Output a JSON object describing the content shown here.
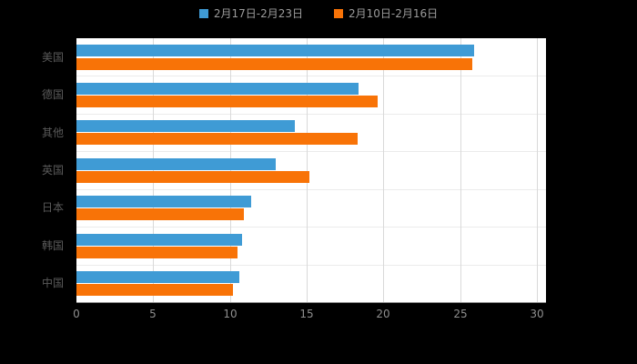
{
  "chart_data": {
    "type": "bar",
    "orientation": "horizontal",
    "title": "",
    "categories": [
      "美国",
      "德国",
      "其他",
      "英国",
      "日本",
      "韩国",
      "中国"
    ],
    "series": [
      {
        "name": "2月17日-2月23日",
        "color": "#3f9bd5",
        "values": [
          25.9,
          18.4,
          14.2,
          13.0,
          11.4,
          10.8,
          10.6
        ]
      },
      {
        "name": "2月10日-2月16日",
        "color": "#f87307",
        "values": [
          25.8,
          19.6,
          18.3,
          15.2,
          10.9,
          10.5,
          10.2
        ]
      }
    ],
    "xlabel": "",
    "ylabel": "",
    "xlim": [
      0,
      30
    ],
    "x_ticks": [
      0,
      5,
      10,
      15,
      20,
      25,
      30
    ],
    "grid": true,
    "legend_position": "top"
  },
  "colors": {
    "background": "#000000",
    "plot_background": "#ffffff",
    "gridline": "#d9d9d9",
    "row_separator": "#ebebeb",
    "tick_label": "#8f8f8f",
    "category_label": "#5a5a5a",
    "legend_text": "#9b9b9b"
  }
}
